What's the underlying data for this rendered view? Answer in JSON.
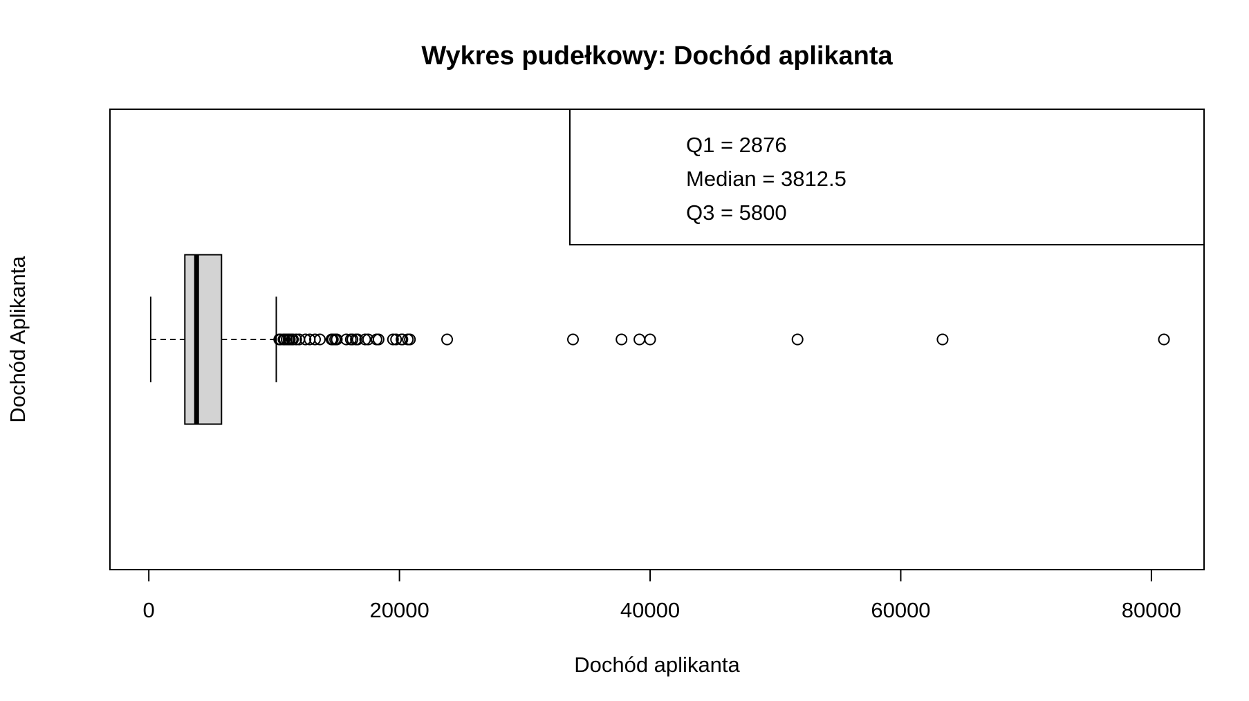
{
  "chart_data": {
    "type": "boxplot",
    "orientation": "horizontal",
    "title": "Wykres pudełkowy:  Dochód aplikanta",
    "xlabel": "Dochód aplikanta",
    "ylabel": "Dochód Aplikanta",
    "xlim": [
      -3100,
      84200
    ],
    "x_ticks": [
      0,
      20000,
      40000,
      60000,
      80000
    ],
    "x_tick_labels": [
      "0",
      "20000",
      "40000",
      "60000",
      "80000"
    ],
    "stats": {
      "whisker_low": 150,
      "q1": 2876,
      "median": 3812.5,
      "q3": 5800,
      "whisker_high": 10171
    },
    "outliers": [
      10408,
      10513,
      10750,
      10833,
      11000,
      11146,
      11250,
      11417,
      11500,
      11757,
      12000,
      12500,
      12841,
      13262,
      13650,
      14583,
      14683,
      14866,
      15000,
      15759,
      16120,
      16250,
      16525,
      16667,
      17263,
      17500,
      18165,
      18333,
      19484,
      19730,
      20166,
      20233,
      20667,
      20833,
      23803,
      33846,
      37719,
      39147,
      39999,
      51763,
      63337,
      81000
    ],
    "box_fill": "#d3d3d3",
    "legend": {
      "placement": "top-right",
      "entries": [
        "Q1 = 2876",
        "Median = 3812.5",
        "Q3 = 5800"
      ]
    },
    "grid": false
  }
}
